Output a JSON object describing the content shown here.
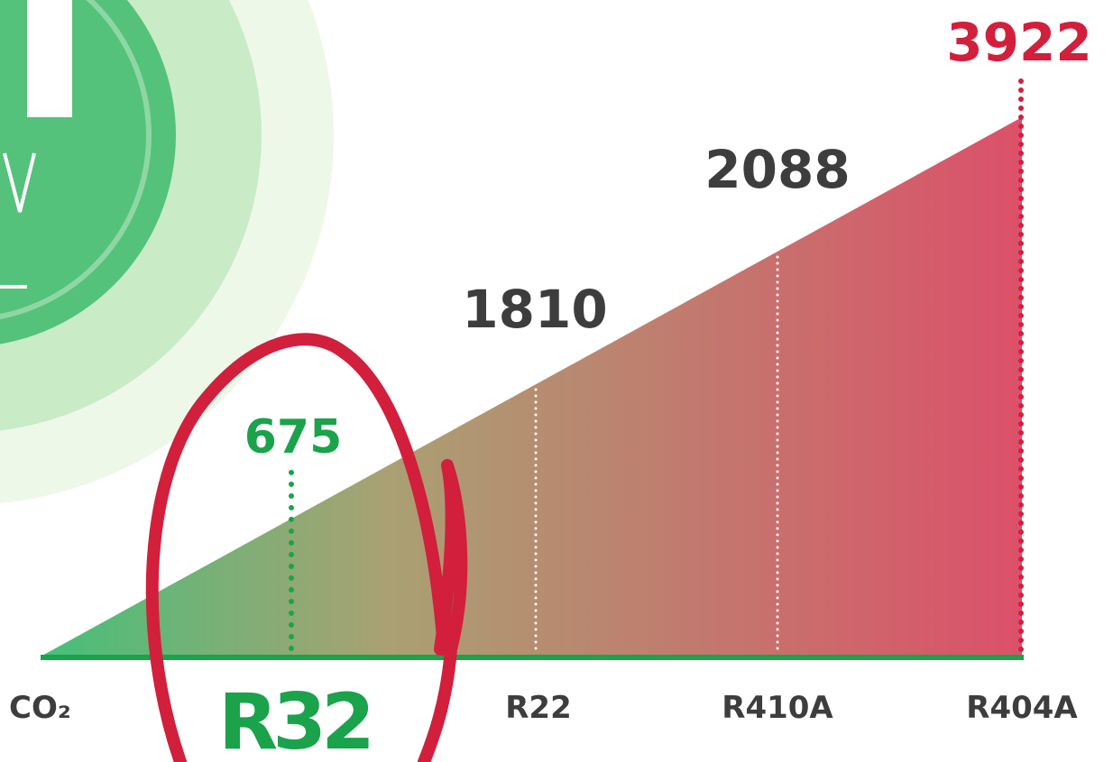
{
  "items": [
    {
      "label": "CO₂"
    },
    {
      "label": "R32",
      "value": 675
    },
    {
      "label": "R22",
      "value": 1810
    },
    {
      "label": "R410A",
      "value": 2088
    },
    {
      "label": "R404A",
      "value": 3922
    }
  ]
}
